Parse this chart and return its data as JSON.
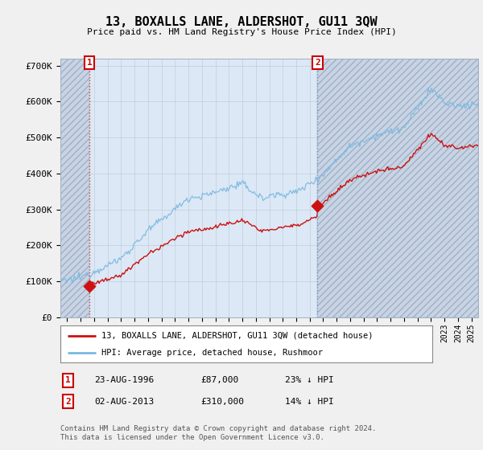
{
  "title": "13, BOXALLS LANE, ALDERSHOT, GU11 3QW",
  "subtitle": "Price paid vs. HM Land Registry's House Price Index (HPI)",
  "legend_line1": "13, BOXALLS LANE, ALDERSHOT, GU11 3QW (detached house)",
  "legend_line2": "HPI: Average price, detached house, Rushmoor",
  "sale1_date": "23-AUG-1996",
  "sale1_price": 87000,
  "sale1_label": "23% ↓ HPI",
  "sale2_date": "02-AUG-2013",
  "sale2_price": 310000,
  "sale2_label": "14% ↓ HPI",
  "footer": "Contains HM Land Registry data © Crown copyright and database right 2024.\nThis data is licensed under the Open Government Licence v3.0.",
  "hpi_color": "#7ab8e0",
  "price_color": "#cc1111",
  "sale_marker_color": "#cc1111",
  "vline1_color": "#dd4444",
  "vline2_color": "#7799bb",
  "hatch_color": "#c0c8d8",
  "plot_bg_color": "#dce8f5",
  "background_color": "#f0f0f0",
  "ylim": [
    0,
    720000
  ],
  "yticks": [
    0,
    100000,
    200000,
    300000,
    400000,
    500000,
    600000,
    700000
  ],
  "ytick_labels": [
    "£0",
    "£100K",
    "£200K",
    "£300K",
    "£400K",
    "£500K",
    "£600K",
    "£700K"
  ],
  "year_start": 1994.5,
  "year_end": 2025.5,
  "sale1_year": 1996.65,
  "sale2_year": 2013.58
}
